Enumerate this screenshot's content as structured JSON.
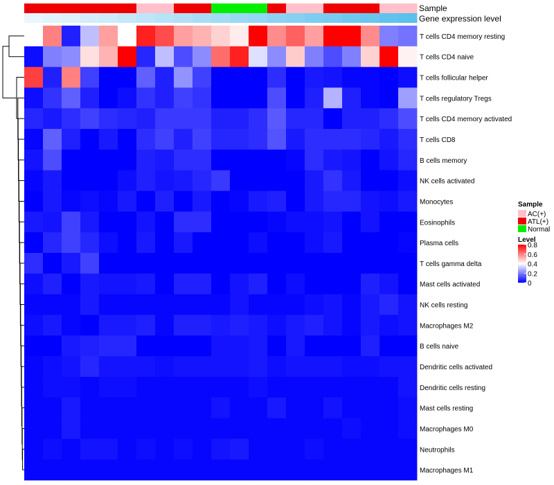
{
  "chart_data": {
    "type": "heatmap",
    "annotation_tracks": [
      "Sample",
      "Gene expression level"
    ],
    "sample_groups": [
      "ATL(+)",
      "ATL(+)",
      "ATL(+)",
      "ATL(+)",
      "ATL(+)",
      "ATL(+)",
      "AC(+)",
      "AC(+)",
      "ATL(+)",
      "ATL(+)",
      "Normal",
      "Normal",
      "Normal",
      "ATL(+)",
      "AC(+)",
      "AC(+)",
      "ATL(+)",
      "ATL(+)",
      "ATL(+)",
      "AC(+)",
      "AC(+)"
    ],
    "expression_levels": [
      0.0,
      0.03,
      0.05,
      0.08,
      0.1,
      0.13,
      0.15,
      0.18,
      0.2,
      0.23,
      0.25,
      0.28,
      0.3,
      0.33,
      0.35,
      0.38,
      0.4,
      0.43,
      0.45,
      0.48,
      0.5
    ],
    "expression_color_range": [
      "#eaf6fd",
      "#5bc0ec"
    ],
    "rows": [
      "T cells CD4 memory resting",
      "T cells CD4 naive",
      "T cells follicular helper",
      "T cells regulatory  Tregs",
      "T cells CD4 memory activated",
      "T cells CD8",
      "B cells memory",
      "NK cells activated",
      "Monocytes",
      "Eosinophils",
      "Plasma cells",
      "T cells gamma delta",
      "Mast cells activated",
      "NK cells resting",
      "Macrophages M2",
      "B cells naive",
      "Dendritic cells activated",
      "Dendritic cells resting",
      "Mast cells resting",
      "Macrophages M0",
      "Neutrophils",
      "Macrophages M1"
    ],
    "values": [
      [
        0.4,
        0.6,
        0.05,
        0.3,
        0.55,
        0.4,
        0.75,
        0.68,
        0.55,
        0.52,
        0.47,
        0.43,
        0.8,
        0.58,
        0.65,
        0.55,
        0.8,
        0.8,
        0.58,
        0.2,
        0.18
      ],
      [
        0.02,
        0.2,
        0.22,
        0.45,
        0.52,
        0.8,
        0.06,
        0.3,
        0.12,
        0.22,
        0.63,
        0.75,
        0.35,
        0.22,
        0.48,
        0.2,
        0.12,
        0.2,
        0.47,
        0.8,
        0.42
      ],
      [
        0.7,
        0.05,
        0.6,
        0.1,
        0.0,
        0.0,
        0.15,
        0.05,
        0.23,
        0.1,
        0.0,
        0.0,
        0.0,
        0.07,
        0.0,
        0.04,
        0.03,
        0.01,
        0.01,
        0.0,
        0.02
      ],
      [
        0.02,
        0.08,
        0.15,
        0.05,
        0.0,
        0.02,
        0.08,
        0.05,
        0.1,
        0.08,
        0.0,
        0.0,
        0.0,
        0.12,
        0.0,
        0.05,
        0.28,
        0.05,
        0.01,
        0.0,
        0.25
      ],
      [
        0.06,
        0.04,
        0.07,
        0.1,
        0.07,
        0.06,
        0.05,
        0.09,
        0.09,
        0.09,
        0.05,
        0.05,
        0.07,
        0.14,
        0.06,
        0.06,
        0.0,
        0.05,
        0.05,
        0.07,
        0.12
      ],
      [
        0.01,
        0.15,
        0.05,
        0.0,
        0.04,
        0.0,
        0.07,
        0.1,
        0.05,
        0.1,
        0.06,
        0.06,
        0.07,
        0.13,
        0.04,
        0.07,
        0.07,
        0.07,
        0.06,
        0.04,
        0.07
      ],
      [
        0.03,
        0.12,
        0.0,
        0.0,
        0.0,
        0.0,
        0.05,
        0.04,
        0.07,
        0.07,
        0.0,
        0.0,
        0.0,
        0.0,
        0.01,
        0.07,
        0.04,
        0.03,
        0.0,
        0.03,
        0.06
      ],
      [
        0.01,
        0.04,
        0.0,
        0.0,
        0.0,
        0.02,
        0.05,
        0.03,
        0.04,
        0.06,
        0.09,
        0.0,
        0.0,
        0.0,
        0.0,
        0.04,
        0.08,
        0.04,
        0.0,
        0.0,
        0.02
      ],
      [
        0.0,
        0.04,
        0.01,
        0.02,
        0.01,
        0.04,
        0.0,
        0.05,
        0.0,
        0.04,
        0.0,
        0.01,
        0.04,
        0.05,
        0.0,
        0.04,
        0.06,
        0.06,
        0.03,
        0.02,
        0.04
      ],
      [
        0.04,
        0.03,
        0.1,
        0.04,
        0.0,
        0.0,
        0.03,
        0.0,
        0.07,
        0.07,
        0.0,
        0.0,
        0.0,
        0.01,
        0.02,
        0.02,
        0.03,
        0.0,
        0.03,
        0.0,
        0.0
      ],
      [
        0.0,
        0.06,
        0.1,
        0.06,
        0.02,
        0.0,
        0.04,
        0.0,
        0.04,
        0.0,
        0.0,
        0.0,
        0.02,
        0.0,
        0.0,
        0.02,
        0.04,
        0.0,
        0.0,
        0.0,
        0.01
      ],
      [
        0.07,
        0.0,
        0.04,
        0.1,
        0.0,
        0.0,
        0.0,
        0.0,
        0.0,
        0.0,
        0.0,
        0.0,
        0.0,
        0.0,
        0.0,
        0.0,
        0.0,
        0.0,
        0.0,
        0.0,
        0.0
      ],
      [
        0.02,
        0.05,
        0.0,
        0.04,
        0.03,
        0.03,
        0.04,
        0.0,
        0.05,
        0.05,
        0.0,
        0.03,
        0.05,
        0.0,
        0.02,
        0.0,
        0.0,
        0.0,
        0.05,
        0.03,
        0.0
      ],
      [
        0.01,
        0.01,
        0.01,
        0.04,
        0.01,
        0.01,
        0.01,
        0.01,
        0.01,
        0.01,
        0.01,
        0.03,
        0.01,
        0.01,
        0.01,
        0.02,
        0.03,
        0.01,
        0.04,
        0.06,
        0.03
      ],
      [
        0.02,
        0.04,
        0.01,
        0.0,
        0.04,
        0.04,
        0.05,
        0.01,
        0.05,
        0.05,
        0.04,
        0.05,
        0.04,
        0.02,
        0.04,
        0.05,
        0.03,
        0.01,
        0.04,
        0.02,
        0.03
      ],
      [
        0.0,
        0.0,
        0.04,
        0.05,
        0.06,
        0.06,
        0.0,
        0.0,
        0.0,
        0.0,
        0.03,
        0.03,
        0.04,
        0.0,
        0.04,
        0.0,
        0.0,
        0.0,
        0.05,
        0.0,
        0.0
      ],
      [
        0.01,
        0.02,
        0.03,
        0.06,
        0.03,
        0.03,
        0.03,
        0.02,
        0.03,
        0.03,
        0.03,
        0.03,
        0.04,
        0.02,
        0.03,
        0.03,
        0.03,
        0.02,
        0.02,
        0.03,
        0.03
      ],
      [
        0.01,
        0.02,
        0.02,
        0.01,
        0.02,
        0.02,
        0.01,
        0.01,
        0.01,
        0.01,
        0.01,
        0.01,
        0.02,
        0.01,
        0.01,
        0.01,
        0.01,
        0.01,
        0.01,
        0.01,
        0.03
      ],
      [
        0.01,
        0.01,
        0.04,
        0.01,
        0.01,
        0.01,
        0.01,
        0.01,
        0.01,
        0.01,
        0.03,
        0.01,
        0.01,
        0.04,
        0.01,
        0.01,
        0.03,
        0.01,
        0.01,
        0.01,
        0.02
      ],
      [
        0.01,
        0.01,
        0.04,
        0.01,
        0.01,
        0.01,
        0.01,
        0.01,
        0.01,
        0.01,
        0.01,
        0.01,
        0.01,
        0.01,
        0.01,
        0.01,
        0.01,
        0.02,
        0.01,
        0.01,
        0.02
      ],
      [
        0.01,
        0.02,
        0.01,
        0.03,
        0.03,
        0.01,
        0.02,
        0.01,
        0.02,
        0.01,
        0.03,
        0.04,
        0.01,
        0.01,
        0.01,
        0.02,
        0.01,
        0.01,
        0.01,
        0.01,
        0.01
      ],
      [
        0.01,
        0.01,
        0.01,
        0.01,
        0.01,
        0.01,
        0.01,
        0.01,
        0.01,
        0.01,
        0.01,
        0.01,
        0.01,
        0.01,
        0.01,
        0.01,
        0.01,
        0.01,
        0.01,
        0.01,
        0.01
      ]
    ],
    "value_range": [
      0,
      0.8
    ],
    "color_scale": [
      {
        "value": 0.0,
        "color": "#0000ff"
      },
      {
        "value": 0.4,
        "color": "#ffffff"
      },
      {
        "value": 0.8,
        "color": "#ff0000"
      }
    ],
    "legend": {
      "sample_title": "Sample",
      "sample_entries": [
        {
          "label": "AC(+)",
          "color": "#ffc0cb"
        },
        {
          "label": "ATL(+)",
          "color": "#ee0000"
        },
        {
          "label": "Normal",
          "color": "#00ee00"
        }
      ],
      "level_title": "Level",
      "level_ticks": [
        "0.8",
        "0.6",
        "0.4",
        "0.2",
        "0"
      ],
      "level_tick_values": [
        0.8,
        0.6,
        0.4,
        0.2,
        0
      ]
    },
    "dendrogram": "row clustering tree (left)"
  }
}
